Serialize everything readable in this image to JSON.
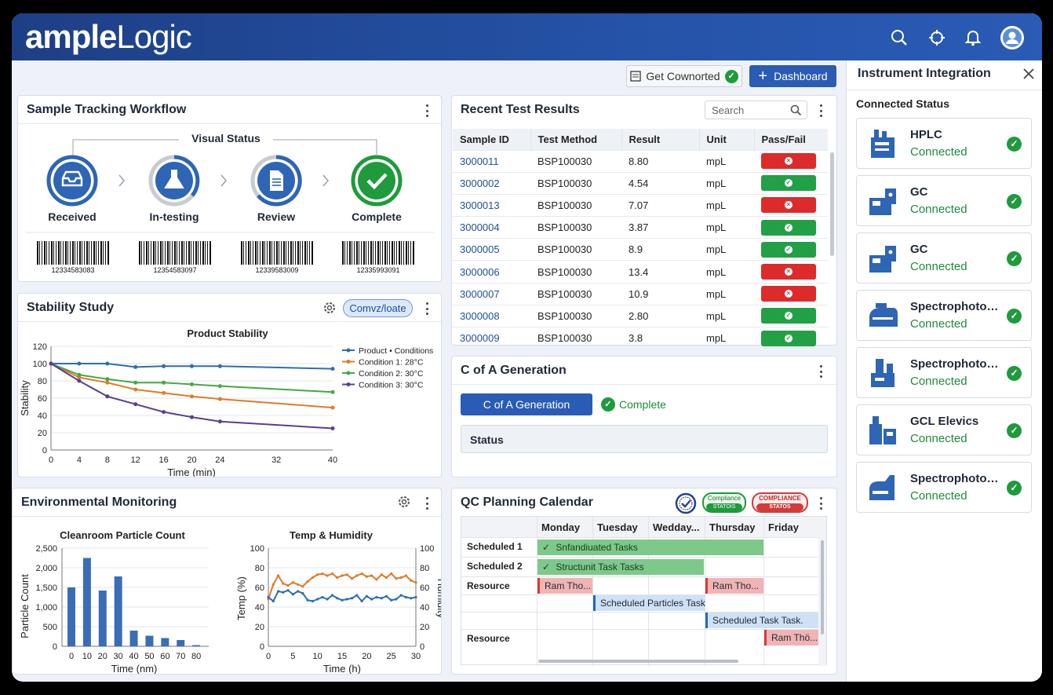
{
  "header": {
    "logo_part1": "ample",
    "logo_part2": "Logic",
    "icons": [
      "search-icon",
      "crosshair-icon",
      "bell-icon",
      "user-avatar-icon"
    ]
  },
  "toolbar": {
    "get_connected_label": "Get Cownorted",
    "dashboard_label": "Dashboard"
  },
  "sample_tracking": {
    "title": "Sample Tracking Workflow",
    "visual_status": "Visual Status",
    "stages": [
      {
        "label": "Received",
        "icon": "inbox-icon"
      },
      {
        "label": "In-testing",
        "icon": "flask-icon"
      },
      {
        "label": "Review",
        "icon": "document-icon"
      },
      {
        "label": "Complete",
        "icon": "check-icon"
      }
    ],
    "barcodes": [
      "12334583083",
      "12354583097",
      "12339583009",
      "12335993091"
    ]
  },
  "stability": {
    "title": "Stability Study",
    "button_label": "Comvz/loate"
  },
  "recent_results": {
    "title": "Recent Test Results",
    "search_placeholder": "Search",
    "columns": [
      "Sample ID",
      "Test Method",
      "Result",
      "Unit",
      "Pass/Fail"
    ],
    "rows": [
      {
        "id": "3000011",
        "method": "BSP100030",
        "result": "8.80",
        "unit": "mpL",
        "pass": false
      },
      {
        "id": "3000002",
        "method": "BSP100030",
        "result": "4.54",
        "unit": "mpL",
        "pass": true
      },
      {
        "id": "3000013",
        "method": "BSP100030",
        "result": "7.07",
        "unit": "mpL",
        "pass": false
      },
      {
        "id": "3000004",
        "method": "BSP100030",
        "result": "3.87",
        "unit": "mpL",
        "pass": true
      },
      {
        "id": "3000005",
        "method": "BSP100030",
        "result": "8.9",
        "unit": "mpL",
        "pass": true
      },
      {
        "id": "3000006",
        "method": "BSP100030",
        "result": "13.4",
        "unit": "mpL",
        "pass": false
      },
      {
        "id": "3000007",
        "method": "BSP100030",
        "result": "10.9",
        "unit": "mpL",
        "pass": false
      },
      {
        "id": "3000008",
        "method": "BSP100030",
        "result": "2.80",
        "unit": "mpL",
        "pass": true
      },
      {
        "id": "3000009",
        "method": "BSP100030",
        "result": "3.8",
        "unit": "mpL",
        "pass": true
      }
    ]
  },
  "coa": {
    "title": "C of A Generation",
    "button_label": "C of A Generation",
    "status_text": "Complete",
    "status_label": "Status"
  },
  "env": {
    "title": "Environmental Monitoring"
  },
  "qc": {
    "title": "QC Planning Calendar",
    "badge1_top": "Compliance",
    "badge1_bottom": "STATOIS",
    "badge2_top": "COMPLIANCE",
    "badge2_bottom": "STATOS",
    "days": [
      "Monday",
      "Tuesday",
      "Wedday...",
      "Thursday",
      "Friday"
    ],
    "row_labels": [
      "Scheduled 1",
      "Scheduled 2",
      "Resource",
      "",
      "",
      "Resource"
    ],
    "tasks": [
      "Snfandiuated Tasks",
      "Structunit Task Tasks",
      "Ram Tho...",
      "Ram Tho...",
      "Scheduled Particles Task",
      "Scheduled Task Task.",
      "Ram Thö..."
    ]
  },
  "instrument": {
    "title": "Instrument Integration",
    "subtitle": "Connected Status",
    "items": [
      {
        "name": "HPLC",
        "status": "Connected"
      },
      {
        "name": "GC",
        "status": "Connected"
      },
      {
        "name": "GC",
        "status": "Connected"
      },
      {
        "name": "Spectrophotom...",
        "status": "Connected"
      },
      {
        "name": "Spectrophotom...",
        "status": "Connected"
      },
      {
        "name": "GCL Elevics",
        "status": "Connected"
      },
      {
        "name": "Spectrophotom...",
        "status": "Connected"
      }
    ]
  },
  "colors": {
    "brand": "#2553a8",
    "pass": "#22a045",
    "fail": "#dd2b2b",
    "connected": "#1f8a3a"
  },
  "chart_data": [
    {
      "type": "line",
      "title": "Product Stability",
      "xlabel": "Time (min)",
      "ylabel": "Stability",
      "xlim": [
        0,
        40
      ],
      "ylim": [
        0,
        120
      ],
      "xticks": [
        0,
        4,
        8,
        12,
        16,
        20,
        24,
        32,
        40
      ],
      "yticks": [
        0,
        20,
        40,
        60,
        80,
        100,
        120
      ],
      "x": [
        0,
        4,
        8,
        12,
        16,
        20,
        24,
        40
      ],
      "series": [
        {
          "name": "Product • Conditions",
          "color": "#2e6db4",
          "values": [
            100,
            100,
            100,
            96,
            97,
            97,
            97,
            94
          ]
        },
        {
          "name": "Condition 1: 28°C",
          "color": "#e07b26",
          "values": [
            100,
            84,
            78,
            70,
            66,
            62,
            59,
            49
          ]
        },
        {
          "name": "Condition 2: 30°C",
          "color": "#46a844",
          "values": [
            100,
            87,
            82,
            78,
            78,
            76,
            74,
            67
          ]
        },
        {
          "name": "Condition 3: 30°C",
          "color": "#5b3f8f",
          "values": [
            100,
            80,
            62,
            53,
            44,
            38,
            33,
            25
          ]
        }
      ],
      "legend": "top-right",
      "grid": true
    },
    {
      "type": "bar",
      "title": "Cleanroom Particle Count",
      "xlabel": "Time (nm)",
      "ylabel": "Particle Count",
      "ylim": [
        0,
        2500
      ],
      "yticks": [
        "0",
        "500",
        "1,000",
        "1,500",
        "2,000",
        "2,500"
      ],
      "categories": [
        "0",
        "10",
        "20",
        "30",
        "40",
        "50",
        "60",
        "70",
        "80"
      ],
      "values": [
        1500,
        2250,
        1420,
        1780,
        400,
        270,
        210,
        160,
        30
      ],
      "color": "#3a6db5",
      "grid": true
    },
    {
      "type": "line",
      "title": "Temp & Humidity",
      "xlabel": "Time (h)",
      "ylabel": "Temp (%)",
      "y2label": "Humidity",
      "xlim": [
        0,
        30
      ],
      "ylim": [
        0,
        100
      ],
      "xticks": [
        0,
        5,
        10,
        15,
        20,
        25,
        30
      ],
      "yticks": [
        0,
        20,
        40,
        60,
        80,
        100
      ],
      "x": [
        0,
        1,
        2,
        3,
        4,
        5,
        6,
        7,
        8,
        9,
        10,
        11,
        12,
        13,
        14,
        15,
        16,
        17,
        18,
        19,
        20,
        21,
        22,
        23,
        24,
        25,
        26,
        27,
        28,
        29,
        30
      ],
      "series": [
        {
          "name": "Temp",
          "color": "#e07b26",
          "values": [
            48,
            63,
            72,
            64,
            62,
            65,
            63,
            61,
            66,
            70,
            73,
            74,
            72,
            74,
            70,
            72,
            73,
            69,
            72,
            74,
            71,
            72,
            68,
            73,
            70,
            74,
            69,
            70,
            72,
            67,
            65
          ]
        },
        {
          "name": "Humidity",
          "color": "#2e6db4",
          "values": [
            50,
            46,
            56,
            55,
            57,
            53,
            56,
            54,
            47,
            46,
            48,
            50,
            48,
            52,
            49,
            47,
            48,
            49,
            52,
            46,
            51,
            48,
            50,
            49,
            51,
            47,
            48,
            52,
            50,
            49,
            50
          ]
        }
      ],
      "grid": true
    }
  ]
}
